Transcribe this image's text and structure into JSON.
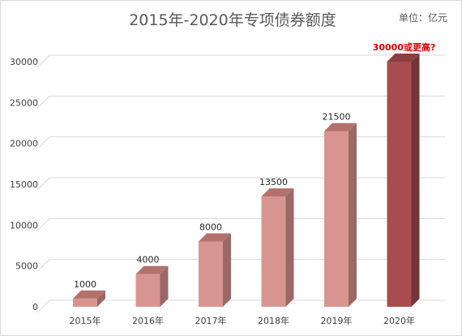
{
  "chart_data": {
    "type": "bar",
    "title": "2015年-2020年专项债券额度",
    "unit_label": "单位：亿元",
    "categories": [
      "2015年",
      "2016年",
      "2017年",
      "2018年",
      "2019年",
      "2020年"
    ],
    "values": [
      1000,
      4000,
      8000,
      13500,
      21500,
      30000
    ],
    "data_labels": [
      "1000",
      "4000",
      "8000",
      "13500",
      "21500",
      "30000或更高?"
    ],
    "ylim": [
      0,
      30000
    ],
    "yticks": [
      0,
      5000,
      10000,
      15000,
      20000,
      25000,
      30000
    ],
    "grid": true,
    "legend": "none",
    "colors": {
      "bar_front": "#d8958f",
      "bar_side": "#9c6865",
      "bar_top": "#b4706b",
      "highlight_front": "#a74d4f",
      "highlight_side": "#723638",
      "highlight_top": "#8a3f41",
      "highlight_label": "#e00000"
    }
  }
}
